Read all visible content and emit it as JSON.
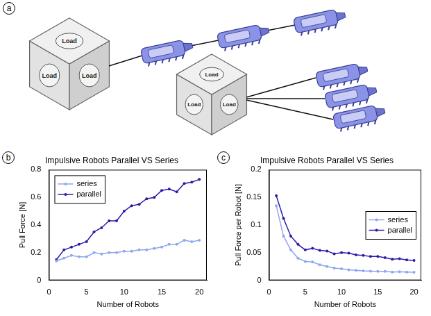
{
  "diagram": {
    "panel_label": "a",
    "load_text": "Load"
  },
  "chart_data": [
    {
      "panel_label": "b",
      "type": "line",
      "title": "Impulsive Robots Parallel VS Series",
      "xlabel": "Number of Robots",
      "ylabel": "Pull Force [N]",
      "x": [
        1,
        2,
        3,
        4,
        5,
        6,
        7,
        8,
        9,
        10,
        11,
        12,
        13,
        14,
        15,
        16,
        17,
        18,
        19,
        20
      ],
      "xlim": [
        0,
        21
      ],
      "xticks": [
        0,
        5,
        10,
        15,
        20
      ],
      "ylim": [
        0,
        0.8
      ],
      "yticks": [
        0,
        0.2,
        0.4,
        0.6,
        0.8
      ],
      "grid": false,
      "legend": "upper left",
      "series": [
        {
          "name": "series",
          "color": "#8ea6ee",
          "marker": "dot",
          "line_style": "solid",
          "values": [
            0.14,
            0.16,
            0.18,
            0.17,
            0.17,
            0.2,
            0.19,
            0.2,
            0.2,
            0.21,
            0.21,
            0.22,
            0.22,
            0.23,
            0.24,
            0.26,
            0.26,
            0.29,
            0.28,
            0.29
          ]
        },
        {
          "name": "parallel",
          "color": "#2b1aa8",
          "marker": "dot",
          "line_style": "solid",
          "values": [
            0.15,
            0.22,
            0.24,
            0.26,
            0.28,
            0.35,
            0.38,
            0.43,
            0.43,
            0.5,
            0.54,
            0.55,
            0.59,
            0.6,
            0.65,
            0.66,
            0.64,
            0.7,
            0.71,
            0.73
          ]
        }
      ]
    },
    {
      "panel_label": "c",
      "type": "line",
      "title": "Impulsive Robots Parallel VS Series",
      "xlabel": "Number of Robots",
      "ylabel": "Pull Force per Robot [N]",
      "x": [
        1,
        2,
        3,
        4,
        5,
        6,
        7,
        8,
        9,
        10,
        11,
        12,
        13,
        14,
        15,
        16,
        17,
        18,
        19,
        20
      ],
      "xlim": [
        0,
        21
      ],
      "xticks": [
        0,
        5,
        10,
        15,
        20
      ],
      "ylim": [
        0,
        0.2
      ],
      "yticks": [
        0,
        0.05,
        0.1,
        0.15,
        0.2
      ],
      "grid": false,
      "legend": "center right",
      "series": [
        {
          "name": "series",
          "color": "#8ea6ee",
          "marker": "dot",
          "line_style": "solid",
          "values": [
            0.135,
            0.08,
            0.055,
            0.04,
            0.034,
            0.033,
            0.028,
            0.025,
            0.022,
            0.021,
            0.019,
            0.018,
            0.017,
            0.0165,
            0.016,
            0.016,
            0.015,
            0.0155,
            0.015,
            0.0145
          ]
        },
        {
          "name": "parallel",
          "color": "#2b1aa8",
          "marker": "dot",
          "line_style": "solid",
          "values": [
            0.153,
            0.112,
            0.08,
            0.065,
            0.055,
            0.058,
            0.054,
            0.053,
            0.048,
            0.05,
            0.049,
            0.046,
            0.045,
            0.043,
            0.043,
            0.041,
            0.038,
            0.039,
            0.037,
            0.036
          ]
        }
      ]
    }
  ]
}
